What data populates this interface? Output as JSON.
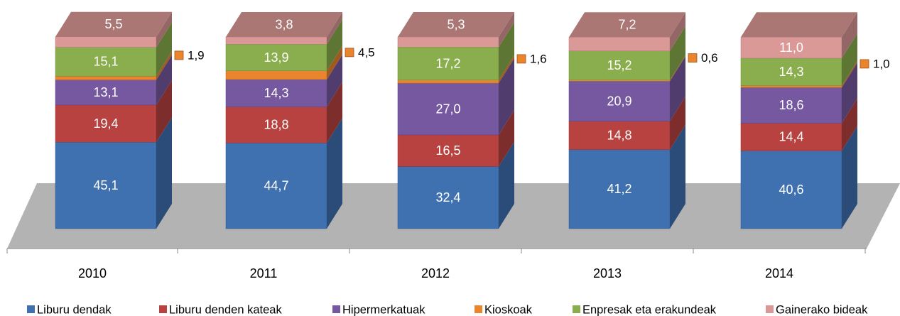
{
  "chart_data": {
    "type": "bar3d_stacked",
    "categories": [
      "2010",
      "2011",
      "2012",
      "2013",
      "2014"
    ],
    "ylim": [
      0,
      100
    ],
    "series": [
      {
        "name": "Liburu dendak",
        "color": "#3f70b0",
        "values": [
          45.1,
          44.7,
          32.4,
          41.2,
          40.6
        ],
        "value_labels": [
          "45,1",
          "44,7",
          "32,4",
          "41,2",
          "40,6"
        ]
      },
      {
        "name": "Liburu denden kateak",
        "color": "#b8423f",
        "values": [
          19.4,
          18.8,
          16.5,
          14.8,
          14.4
        ],
        "value_labels": [
          "19,4",
          "18,8",
          "16,5",
          "14,8",
          "14,4"
        ]
      },
      {
        "name": "Hipermerkatuak",
        "color": "#7658a0",
        "values": [
          13.1,
          14.3,
          27.0,
          20.9,
          18.6
        ],
        "value_labels": [
          "13,1",
          "14,3",
          "27,0",
          "20,9",
          "18,6"
        ]
      },
      {
        "name": "Kioskoak",
        "color": "#ea852e",
        "values": [
          1.9,
          4.5,
          1.6,
          0.6,
          1.0
        ],
        "value_labels": [
          "1,9",
          "4,5",
          "1,6",
          "0,6",
          "1,0"
        ]
      },
      {
        "name": "Enpresak eta erakundeak",
        "color": "#8aae4d",
        "values": [
          15.1,
          13.9,
          17.2,
          15.2,
          14.3
        ],
        "value_labels": [
          "15,1",
          "13,9",
          "17,2",
          "15,2",
          "14,3"
        ]
      },
      {
        "name": "Gainerako bideak",
        "color": "#da9896",
        "values": [
          5.5,
          3.8,
          5.3,
          7.2,
          11.0
        ],
        "value_labels": [
          "5,5",
          "3,8",
          "5,3",
          "7,2",
          "11,0"
        ]
      }
    ]
  }
}
